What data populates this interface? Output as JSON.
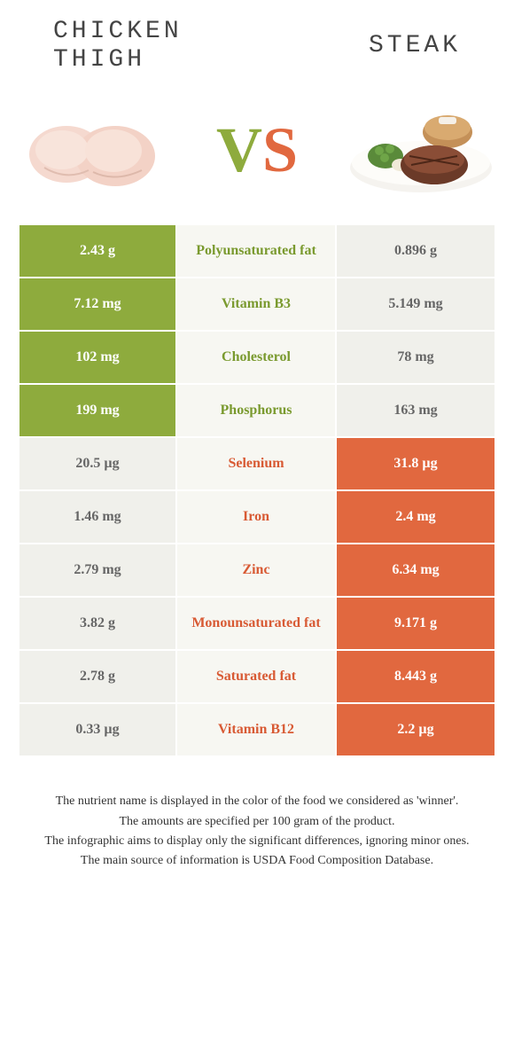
{
  "header": {
    "left_title_line1": "CHICKEN",
    "left_title_line2": "THIGH",
    "right_title": "STEAK",
    "vs_v": "V",
    "vs_s": "S"
  },
  "colors": {
    "green": "#8eab3d",
    "orange": "#e1683f",
    "grey_cell": "#f0f0eb",
    "nutrient_bg": "#f7f7f2",
    "green_text": "#7a9a2f",
    "orange_text": "#d85a34"
  },
  "rows": [
    {
      "left": "2.43 g",
      "nutrient": "Polyunsaturated fat",
      "right": "0.896 g",
      "winner": "left"
    },
    {
      "left": "7.12 mg",
      "nutrient": "Vitamin B3",
      "right": "5.149 mg",
      "winner": "left"
    },
    {
      "left": "102 mg",
      "nutrient": "Cholesterol",
      "right": "78 mg",
      "winner": "left"
    },
    {
      "left": "199 mg",
      "nutrient": "Phosphorus",
      "right": "163 mg",
      "winner": "left"
    },
    {
      "left": "20.5 µg",
      "nutrient": "Selenium",
      "right": "31.8 µg",
      "winner": "right"
    },
    {
      "left": "1.46 mg",
      "nutrient": "Iron",
      "right": "2.4 mg",
      "winner": "right"
    },
    {
      "left": "2.79 mg",
      "nutrient": "Zinc",
      "right": "6.34 mg",
      "winner": "right"
    },
    {
      "left": "3.82 g",
      "nutrient": "Monounsaturated fat",
      "right": "9.171 g",
      "winner": "right"
    },
    {
      "left": "2.78 g",
      "nutrient": "Saturated fat",
      "right": "8.443 g",
      "winner": "right"
    },
    {
      "left": "0.33 µg",
      "nutrient": "Vitamin B12",
      "right": "2.2 µg",
      "winner": "right"
    }
  ],
  "footer": {
    "line1": "The nutrient name is displayed in the color of the food we considered as 'winner'.",
    "line2": "The amounts are specified per 100 gram of the product.",
    "line3": "The infographic aims to display only the significant differences, ignoring minor ones.",
    "line4": "The main source of information is USDA Food Composition Database."
  }
}
